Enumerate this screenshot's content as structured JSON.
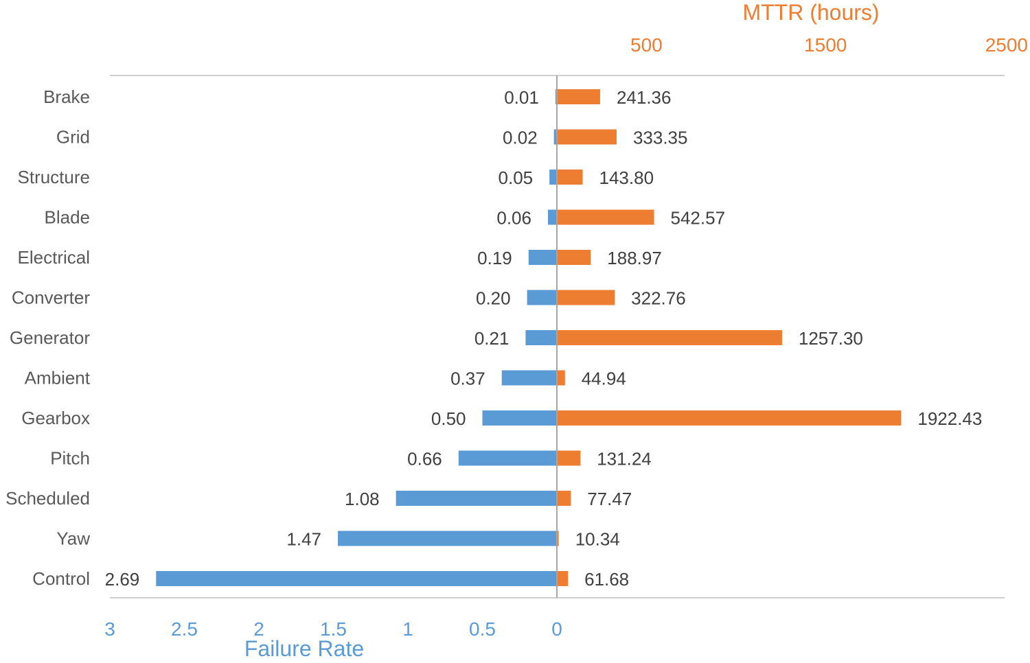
{
  "chart_data": {
    "type": "bar",
    "orientation": "horizontal-diverging",
    "categories": [
      "Brake",
      "Grid",
      "Structure",
      "Blade",
      "Electrical",
      "Converter",
      "Generator",
      "Ambient",
      "Gearbox",
      "Pitch",
      "Scheduled",
      "Yaw",
      "Control"
    ],
    "series": [
      {
        "name": "Failure Rate",
        "side": "left",
        "color": "#5B9BD5",
        "values": [
          0.01,
          0.02,
          0.05,
          0.06,
          0.19,
          0.2,
          0.21,
          0.37,
          0.5,
          0.66,
          1.08,
          1.47,
          2.69
        ],
        "labels": [
          "0.01",
          "0.02",
          "0.05",
          "0.06",
          "0.19",
          "0.20",
          "0.21",
          "0.37",
          "0.50",
          "0.66",
          "1.08",
          "1.47",
          "2.69"
        ]
      },
      {
        "name": "MTTR (hours)",
        "side": "right",
        "color": "#ED7D31",
        "values": [
          241.36,
          333.35,
          143.8,
          542.57,
          188.97,
          322.76,
          1257.3,
          44.94,
          1922.43,
          131.24,
          77.47,
          10.34,
          61.68
        ],
        "labels": [
          "241.36",
          "333.35",
          "143.80",
          "542.57",
          "188.97",
          "322.76",
          "1257.30",
          "44.94",
          "1922.43",
          "131.24",
          "77.47",
          "10.34",
          "61.68"
        ]
      }
    ],
    "x_left": {
      "label": "Failure Rate",
      "color": "#5B9BD5",
      "range": [
        0,
        3
      ],
      "reversed": true,
      "ticks": [
        3,
        2.5,
        2,
        1.5,
        1,
        0.5,
        0
      ],
      "tick_labels": [
        "3",
        "2.5",
        "2",
        "1.5",
        "1",
        "0.5",
        "0"
      ]
    },
    "x_right": {
      "label": "MTTR (hours)",
      "color": "#ED7D31",
      "range": [
        0,
        2500
      ],
      "ticks": [
        500,
        1500,
        2500
      ],
      "tick_labels": [
        "500",
        "1500",
        "2500"
      ]
    },
    "category_label_color": "#595959",
    "data_label_color": "#404040",
    "axis_line_color": "#BFBFBF",
    "grid": false,
    "legend": "none"
  }
}
